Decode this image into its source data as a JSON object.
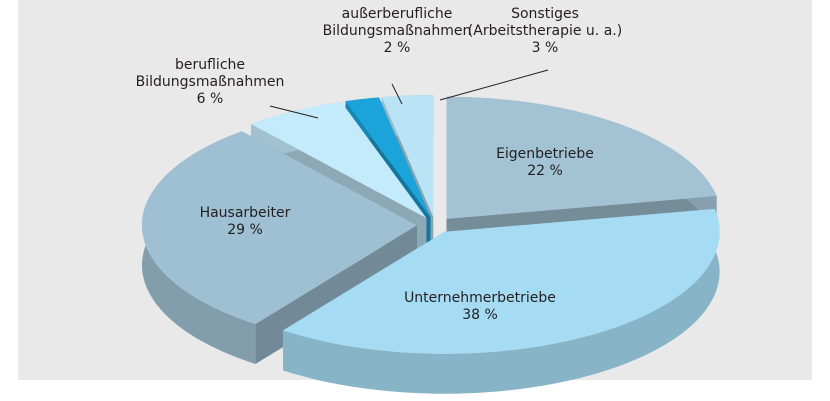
{
  "chart_data": {
    "type": "pie",
    "categories": [
      "Eigenbetriebe",
      "Unternehmerbetriebe",
      "Hausarbeiter",
      "berufliche Bildungsmaßnahmen",
      "außerberufliche Bildungsmaßnahmen",
      "Sonstiges (Arbeitstherapie u. a.)"
    ],
    "values": [
      22,
      38,
      29,
      6,
      2,
      3
    ],
    "value_labels": [
      "22 %",
      "38 %",
      "29 %",
      "6 %",
      "2 %",
      "3 %"
    ],
    "colors": [
      "#a3c3d5",
      "#a6dcf3",
      "#9fbfd2",
      "#c4ebfb",
      "#1ba4da",
      "#b8e4f6"
    ]
  }
}
